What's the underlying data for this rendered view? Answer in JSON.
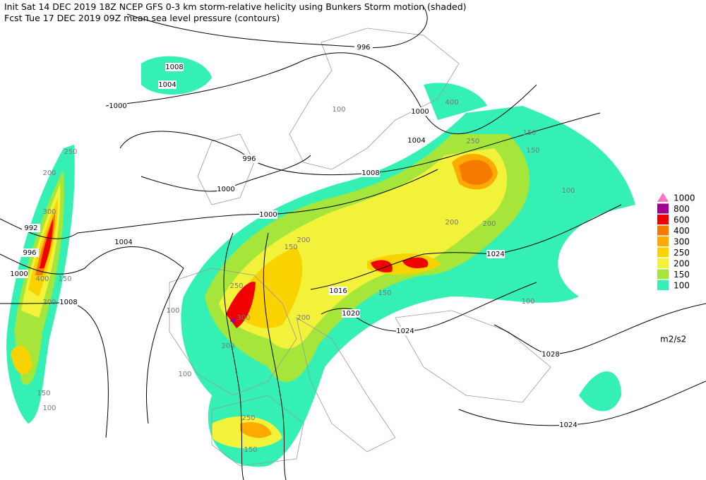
{
  "header": {
    "line1": "Init  Sat 14 DEC 2019 18Z  NCEP GFS 0-3 km storm-relative helicity using Bunkers Storm motion (shaded)",
    "line2": "Fcst Tue 17 DEC 2019 09Z  mean sea level pressure (contours)"
  },
  "legend": {
    "levels": [
      {
        "value": 100,
        "color": "#34f0b4"
      },
      {
        "value": 150,
        "color": "#a6e63a"
      },
      {
        "value": 200,
        "color": "#f2f23a"
      },
      {
        "value": 250,
        "color": "#fad200"
      },
      {
        "value": 300,
        "color": "#ffaa00"
      },
      {
        "value": 400,
        "color": "#f57a00"
      },
      {
        "value": 600,
        "color": "#f00000"
      },
      {
        "value": 800,
        "color": "#a0008c"
      },
      {
        "value": 1000,
        "color": "#ff70c8"
      }
    ],
    "unit": "m2/s2"
  },
  "pressure_labels": [
    996,
    1008,
    1004,
    1000,
    1000,
    1004,
    996,
    1008,
    1000,
    1000,
    992,
    996,
    1004,
    1000,
    1008,
    1024,
    1016,
    1020,
    1024,
    1028,
    1024
  ],
  "helicity_labels": [
    100,
    150,
    200,
    250,
    300,
    400,
    150,
    200,
    100,
    250,
    300,
    150,
    200,
    100,
    150,
    400,
    200,
    250,
    150,
    100,
    200,
    150,
    100,
    200,
    250,
    100,
    150,
    200
  ]
}
